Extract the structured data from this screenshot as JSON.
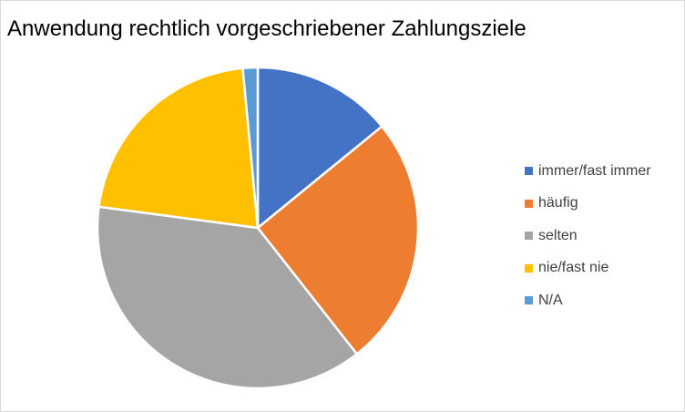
{
  "chart_data": {
    "type": "pie",
    "title": "Anwendung rechtlich vorgeschriebener Zahlungsziele",
    "categories": [
      "immer/fast immer",
      "häufig",
      "selten",
      "nie/fast nie",
      "N/A"
    ],
    "values": [
      14.1,
      25.3,
      37.7,
      21.4,
      1.5
    ],
    "colors": [
      "#4472c4",
      "#ed7d31",
      "#a5a5a5",
      "#ffc000",
      "#5b9bd5"
    ],
    "legend_position": "right",
    "start_angle": "12 o'clock, clockwise"
  }
}
